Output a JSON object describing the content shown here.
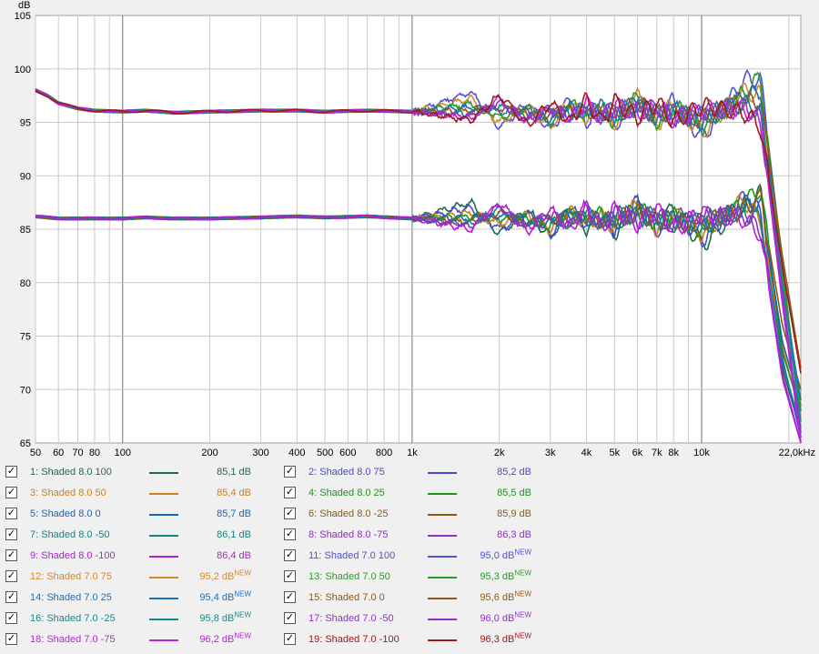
{
  "chart_data": {
    "type": "line",
    "ylabel": "dB",
    "xlim": [
      50,
      22000
    ],
    "ylim": [
      65,
      105
    ],
    "xscale": "log",
    "grid": true,
    "legend_placement": "bottom",
    "y_ticks": [
      "65",
      "70",
      "75",
      "80",
      "85",
      "90",
      "95",
      "100",
      "105"
    ],
    "x_ticks": [
      {
        "v": 50,
        "label": "50"
      },
      {
        "v": 60,
        "label": "60"
      },
      {
        "v": 70,
        "label": "70"
      },
      {
        "v": 80,
        "label": "80"
      },
      {
        "v": 100,
        "label": "100"
      },
      {
        "v": 200,
        "label": "200"
      },
      {
        "v": 300,
        "label": "300"
      },
      {
        "v": 400,
        "label": "400"
      },
      {
        "v": 500,
        "label": "500"
      },
      {
        "v": 600,
        "label": "600"
      },
      {
        "v": 800,
        "label": "800"
      },
      {
        "v": 1000,
        "label": "1k"
      },
      {
        "v": 2000,
        "label": "2k"
      },
      {
        "v": 3000,
        "label": "3k"
      },
      {
        "v": 4000,
        "label": "4k"
      },
      {
        "v": 5000,
        "label": "5k"
      },
      {
        "v": 6000,
        "label": "6k"
      },
      {
        "v": 7000,
        "label": "7k"
      },
      {
        "v": 8000,
        "label": "8k"
      },
      {
        "v": 10000,
        "label": "10k"
      },
      {
        "v": 22000,
        "label": "22,0kHz"
      }
    ],
    "x_labels": [
      "50",
      "60",
      "70",
      "80",
      "100",
      "200",
      "300",
      "400",
      "500",
      "600",
      "800",
      "1k",
      "2k",
      "3k",
      "4k",
      "5k",
      "6k",
      "7k",
      "8k",
      "10k",
      "22,0kHz"
    ],
    "series": [
      {
        "name": "1: Shaded 8.0 100",
        "color": "#1f6b4f",
        "value": "85,1 dB",
        "is_new": false,
        "base": 86.0,
        "hf": [
          86.0,
          87.5,
          84.5,
          86.8,
          84.2,
          87.2,
          85.0,
          86.3,
          84.8,
          86.9,
          85.3,
          87.0,
          83.5,
          87.3,
          88.5,
          72.0,
          66.0
        ]
      },
      {
        "name": "2: Shaded 8.0 75",
        "color": "#4a4acc",
        "value": "85,2 dB",
        "is_new": false,
        "base": 86.0,
        "hf": [
          86.0,
          87.0,
          85.0,
          86.5,
          84.5,
          87.0,
          85.3,
          86.0,
          85.0,
          87.5,
          84.8,
          86.8,
          84.0,
          88.0,
          86.5,
          73.0,
          65.5
        ]
      },
      {
        "name": "3: Shaded 8.0 50",
        "color": "#d17e1b",
        "value": "85,4 dB",
        "is_new": false,
        "base": 86.0,
        "hf": [
          86.0,
          86.5,
          85.5,
          86.3,
          85.0,
          86.8,
          85.6,
          86.2,
          85.2,
          87.3,
          85.1,
          86.5,
          84.6,
          87.7,
          86.0,
          74.0,
          67.5
        ]
      },
      {
        "name": "4: Shaded 8.0 25",
        "color": "#159915",
        "value": "85,5 dB",
        "is_new": false,
        "base": 86.0,
        "hf": [
          86.0,
          86.2,
          86.0,
          86.0,
          85.3,
          86.5,
          85.8,
          86.5,
          85.4,
          87.0,
          85.5,
          86.2,
          85.0,
          87.4,
          88.8,
          73.5,
          68.0
        ]
      },
      {
        "name": "5: Shaded 8.0 0",
        "color": "#1766b3",
        "value": "85,7 dB",
        "is_new": false,
        "base": 86.0,
        "hf": [
          86.0,
          86.0,
          86.3,
          85.8,
          85.6,
          86.2,
          86.0,
          86.0,
          85.7,
          86.7,
          85.7,
          86.0,
          85.3,
          87.0,
          87.5,
          74.5,
          68.5
        ]
      },
      {
        "name": "6: Shaded 8.0 -25",
        "color": "#8b5a12",
        "value": "85,9 dB",
        "is_new": false,
        "base": 86.0,
        "hf": [
          86.0,
          85.7,
          86.6,
          85.5,
          85.9,
          85.9,
          86.3,
          85.8,
          86.0,
          86.4,
          86.0,
          85.8,
          85.6,
          86.8,
          88.0,
          76.0,
          70.0
        ]
      },
      {
        "name": "7: Shaded 8.0 -50",
        "color": "#138484",
        "value": "86,1 dB",
        "is_new": false,
        "base": 86.0,
        "hf": [
          86.0,
          85.5,
          86.9,
          85.3,
          86.2,
          85.6,
          86.6,
          85.5,
          86.3,
          86.1,
          86.3,
          85.5,
          85.9,
          86.5,
          86.0,
          72.5,
          66.5
        ]
      },
      {
        "name": "8: Shaded 8.0 -75",
        "color": "#8c2fc4",
        "value": "86,3 dB",
        "is_new": false,
        "base": 86.0,
        "hf": [
          86.0,
          85.3,
          87.2,
          85.0,
          86.5,
          85.3,
          86.9,
          85.2,
          86.6,
          85.8,
          86.6,
          85.2,
          86.2,
          86.2,
          85.0,
          71.5,
          65.0
        ]
      },
      {
        "name": "9: Shaded 8.0 -100",
        "color": "#b21ed6",
        "value": "86,4 dB",
        "is_new": false,
        "base": 86.0,
        "hf": [
          86.0,
          85.0,
          87.5,
          84.8,
          86.8,
          85.0,
          87.2,
          85.0,
          86.9,
          85.5,
          86.9,
          85.0,
          86.5,
          85.9,
          84.5,
          71.0,
          65.0
        ]
      },
      {
        "name": "11: Shaded 7.0 100",
        "color": "#5252d6",
        "value": "95,0 dB",
        "is_new": true,
        "base": 96.0,
        "hf": [
          96.0,
          97.8,
          94.5,
          96.8,
          94.2,
          97.2,
          95.0,
          96.3,
          94.8,
          96.9,
          95.3,
          97.0,
          93.5,
          98.9,
          99.0,
          82.0,
          66.0
        ]
      },
      {
        "name": "12: Shaded 7.0 75",
        "color": "#d58a2a",
        "value": "95,2 dB",
        "is_new": true,
        "base": 96.0,
        "hf": [
          96.0,
          97.2,
          95.0,
          96.5,
          94.5,
          97.0,
          95.3,
          96.0,
          95.0,
          97.5,
          94.8,
          96.8,
          94.0,
          98.0,
          97.5,
          80.0,
          67.0
        ]
      },
      {
        "name": "13: Shaded 7.0 50",
        "color": "#2a9a2a",
        "value": "95,3 dB",
        "is_new": true,
        "base": 96.0,
        "hf": [
          96.0,
          96.7,
          95.5,
          96.3,
          95.0,
          96.8,
          95.6,
          96.2,
          95.2,
          97.3,
          95.1,
          96.5,
          94.6,
          97.7,
          99.2,
          81.0,
          68.0
        ]
      },
      {
        "name": "14: Shaded 7.0 25",
        "color": "#1d6fb8",
        "value": "95,4 dB",
        "is_new": true,
        "base": 96.0,
        "hf": [
          96.0,
          96.4,
          96.0,
          96.0,
          95.3,
          96.5,
          95.8,
          96.5,
          95.4,
          97.0,
          95.5,
          96.2,
          95.0,
          97.4,
          98.0,
          79.5,
          69.0
        ]
      },
      {
        "name": "15: Shaded 7.0 0",
        "color": "#8d5a16",
        "value": "95,6 dB",
        "is_new": true,
        "base": 96.0,
        "hf": [
          96.0,
          96.1,
          96.3,
          95.8,
          95.6,
          96.2,
          96.0,
          96.0,
          95.7,
          96.7,
          95.7,
          96.0,
          95.3,
          97.0,
          97.0,
          82.5,
          72.0
        ]
      },
      {
        "name": "16: Shaded 7.0 -25",
        "color": "#178888",
        "value": "95,8 dB",
        "is_new": true,
        "base": 96.0,
        "hf": [
          96.0,
          95.8,
          96.6,
          95.5,
          95.9,
          95.9,
          96.3,
          95.8,
          96.0,
          96.4,
          96.0,
          95.8,
          95.6,
          96.8,
          96.0,
          80.0,
          67.0
        ]
      },
      {
        "name": "17: Shaded 7.0 -50",
        "color": "#8e33c8",
        "value": "96,0 dB",
        "is_new": true,
        "base": 96.0,
        "hf": [
          96.0,
          95.6,
          96.9,
          95.3,
          96.2,
          95.6,
          96.6,
          95.5,
          96.3,
          96.1,
          96.3,
          95.5,
          95.9,
          96.5,
          95.5,
          79.0,
          65.5
        ]
      },
      {
        "name": "18: Shaded 7.0 -75",
        "color": "#b526d8",
        "value": "96,2 dB",
        "is_new": true,
        "base": 96.0,
        "hf": [
          96.0,
          95.4,
          97.2,
          95.0,
          96.5,
          95.3,
          96.9,
          95.2,
          96.6,
          95.8,
          96.6,
          95.2,
          96.2,
          96.2,
          95.0,
          78.0,
          65.0
        ]
      },
      {
        "name": "19: Shaded 7.0 -100",
        "color": "#a01818",
        "value": "96,3 dB",
        "is_new": true,
        "base": 96.0,
        "hf": [
          96.0,
          95.2,
          97.5,
          94.8,
          96.8,
          95.0,
          97.2,
          95.0,
          96.9,
          95.5,
          96.9,
          95.0,
          96.5,
          95.9,
          94.5,
          81.5,
          71.5
        ]
      }
    ],
    "hf_x": [
      1000,
      1600,
      2000,
      2500,
      3000,
      3500,
      4000,
      4500,
      5000,
      6000,
      7000,
      8000,
      10000,
      14000,
      16000,
      19000,
      22000
    ],
    "lf": {
      "x": [
        50,
        55,
        60,
        70,
        80,
        100,
        120,
        150,
        200,
        300,
        400,
        500,
        700,
        1000
      ],
      "top": [
        98.0,
        97.5,
        96.8,
        96.3,
        96.1,
        96.0,
        96.1,
        95.9,
        96.0,
        96.1,
        96.1,
        96.0,
        96.1,
        96.0
      ],
      "bottom": [
        86.2,
        86.1,
        86.0,
        86.0,
        86.0,
        86.0,
        86.1,
        86.0,
        86.0,
        86.1,
        86.2,
        86.1,
        86.2,
        86.0
      ]
    }
  },
  "new_badge": "NEW"
}
